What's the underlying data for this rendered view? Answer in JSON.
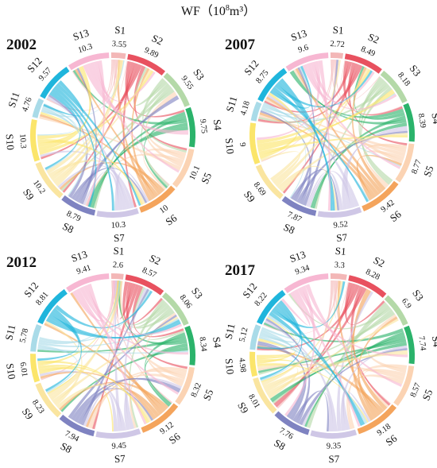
{
  "title": {
    "main": "WF（10",
    "sup": "8",
    "unit": "m³）"
  },
  "colors": {
    "S1": "#f3b7b7",
    "S2": "#e8515f",
    "S3": "#b4d9a8",
    "S4": "#2bb36b",
    "S5": "#fbd3b3",
    "S6": "#f4a45c",
    "S7": "#cfc7e6",
    "S8": "#7f83c1",
    "S9": "#fae5a0",
    "S10": "#fbe56a",
    "S11": "#a9dbe8",
    "S12": "#1fb5dc",
    "S13": "#f7b7d2"
  },
  "chart_data": [
    {
      "type": "chord",
      "title": "2002",
      "sectors": [
        "S1",
        "S2",
        "S3",
        "S4",
        "S5",
        "S6",
        "S7",
        "S8",
        "S9",
        "S10",
        "S11",
        "S12",
        "S13"
      ],
      "values": [
        3.55,
        9.89,
        9.55,
        9.75,
        10.1,
        10,
        10.3,
        8.79,
        10.2,
        10.3,
        4.76,
        9.57,
        10.3
      ],
      "value_labels": [
        "3.55",
        "9.89",
        "9.55",
        "9.75",
        "10.1",
        "10",
        "10.3",
        "8.79",
        "10.2",
        "10.3",
        "4.76",
        "9.57",
        "10.3"
      ]
    },
    {
      "type": "chord",
      "title": "2007",
      "sectors": [
        "S1",
        "S2",
        "S3",
        "S4",
        "S5",
        "S6",
        "S7",
        "S8",
        "S9",
        "S10",
        "S11",
        "S12",
        "S13"
      ],
      "values": [
        2.72,
        8.49,
        8.18,
        8.39,
        8.77,
        9.42,
        9.52,
        7.87,
        8.69,
        9,
        4.18,
        8.75,
        9.6
      ],
      "value_labels": [
        "2.72",
        "8.49",
        "8.18",
        "8.39",
        "8.77",
        "9.42",
        "9.52",
        "7.87",
        "8.69",
        "9",
        "4.18",
        "8.75",
        "9.6"
      ]
    },
    {
      "type": "chord",
      "title": "2012",
      "sectors": [
        "S1",
        "S2",
        "S3",
        "S4",
        "S5",
        "S6",
        "S7",
        "S8",
        "S9",
        "S10",
        "S11",
        "S12",
        "S13"
      ],
      "values": [
        2.6,
        8.57,
        8.06,
        8.34,
        8.32,
        9.12,
        9.45,
        7.94,
        8.23,
        6.01,
        5.78,
        8.81,
        9.41
      ],
      "value_labels": [
        "2.6",
        "8.57",
        "8.06",
        "8.34",
        "8.32",
        "9.12",
        "9.45",
        "7.94",
        "8.23",
        "6.01",
        "5.78",
        "8.81",
        "9.41"
      ]
    },
    {
      "type": "chord",
      "title": "2017",
      "sectors": [
        "S1",
        "S2",
        "S3",
        "S4",
        "S5",
        "S6",
        "S7",
        "S8",
        "S9",
        "S10",
        "S11",
        "S12",
        "S13"
      ],
      "values": [
        3.3,
        8.28,
        6.9,
        7.74,
        8.57,
        9.18,
        9.35,
        7.76,
        8.01,
        4.98,
        5.12,
        8.22,
        9.34
      ],
      "value_labels": [
        "3.3",
        "8.28",
        "6.9",
        "7.74",
        "8.57",
        "9.18",
        "9.35",
        "7.76",
        "8.01",
        "4.98",
        "5.12",
        "8.22",
        "9.34"
      ]
    }
  ]
}
